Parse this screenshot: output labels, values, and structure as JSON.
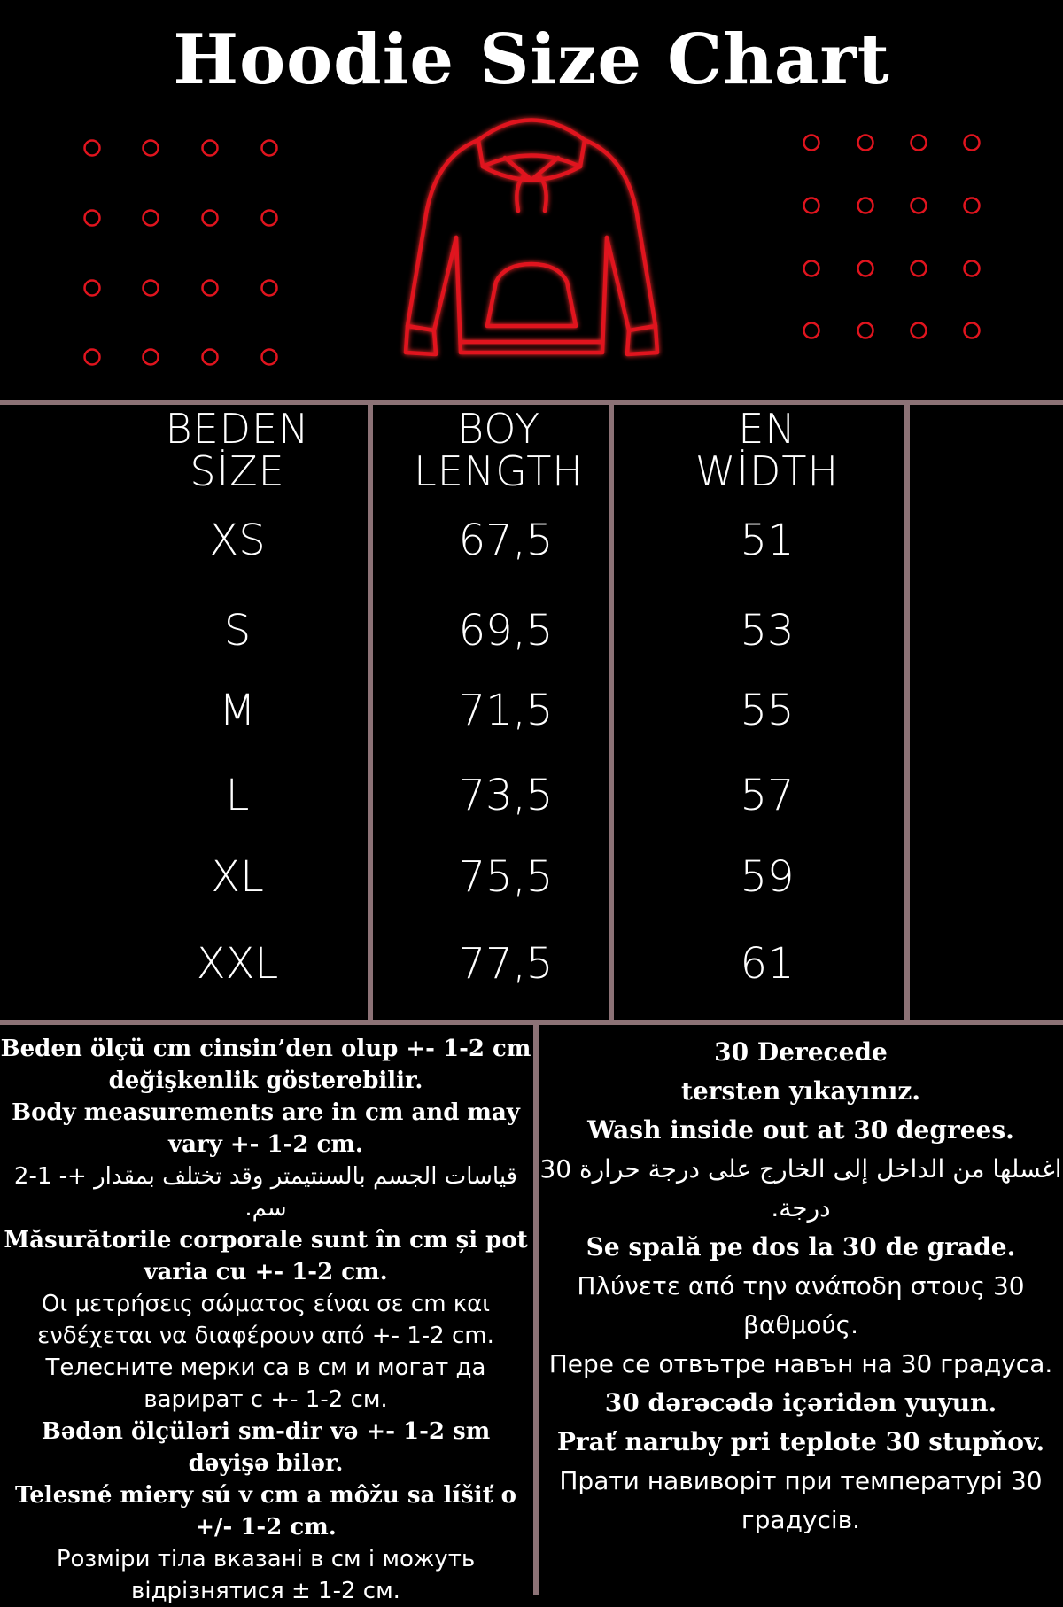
{
  "title": "Hoodie Size Chart",
  "colors": {
    "accent": "#e0141e",
    "divider": "#8c7276",
    "background": "#000000",
    "text": "#ffffff"
  },
  "icons": {
    "hoodie": "hoodie-outline-icon",
    "dots": "decorative-circle-grid"
  },
  "table": {
    "headers": [
      {
        "line1": "BEDEN",
        "line2": "SİZE"
      },
      {
        "line1": "BOY",
        "line2": "LENGTH"
      },
      {
        "line1": "EN",
        "line2": "WİDTH"
      }
    ],
    "rows": [
      {
        "size": "XS",
        "length": "67,5",
        "width": "51"
      },
      {
        "size": "S",
        "length": "69,5",
        "width": "53"
      },
      {
        "size": "M",
        "length": "71,5",
        "width": "55"
      },
      {
        "size": "L",
        "length": "73,5",
        "width": "57"
      },
      {
        "size": "XL",
        "length": "75,5",
        "width": "59"
      },
      {
        "size": "XXL",
        "length": "77,5",
        "width": "61"
      }
    ]
  },
  "notes_left": [
    {
      "text": "Beden ölçü cm cinsin’den olup +- 1-2 cm değişkenlik gösterebilir.",
      "style": "s"
    },
    {
      "text": "Body measurements are in cm and may vary +- 1-2 cm.",
      "style": "s"
    },
    {
      "text": "قياسات الجسم بالسنتيمتر وقد تختلف بمقدار +- 1-2 سم.",
      "style": "n"
    },
    {
      "text": "Măsurătorile corporale sunt în cm și pot varia cu +- 1-2 cm.",
      "style": "s"
    },
    {
      "text": "Οι μετρήσεις σώματος είναι σε cm και ενδέχεται να διαφέρουν από +- 1-2 cm.",
      "style": "n"
    },
    {
      "text": "Телесните мерки са в см и могат да варират с +- 1-2 см.",
      "style": "n"
    },
    {
      "text": "Bədən ölçüləri sm-dir və +- 1-2 sm dəyişə bilər.",
      "style": "s"
    },
    {
      "text": "Telesné miery sú v cm a môžu sa líšiť o +/- 1-2 cm.",
      "style": "s"
    },
    {
      "text": "Розміри тіла вказані в см і можуть відрізнятися ± 1-2 см.",
      "style": "n"
    }
  ],
  "notes_right": [
    {
      "text": "30 Derecede",
      "style": "s"
    },
    {
      "text": "tersten yıkayınız.",
      "style": "s"
    },
    {
      "text": "Wash inside out at 30 degrees.",
      "style": "s"
    },
    {
      "text": "اغسلها من الداخل إلى الخارج على درجة حرارة 30 درجة.",
      "style": "n"
    },
    {
      "text": "Se spală pe dos la 30 de grade.",
      "style": "s"
    },
    {
      "text": "Πλύνετε από την ανάποδη στους 30 βαθμούς.",
      "style": "n"
    },
    {
      "text": "Пере се отвътре навън на 30 градуса.",
      "style": "n"
    },
    {
      "text": "30 dərəcədə içəridən yuyun.",
      "style": "s"
    },
    {
      "text": "Prať naruby pri teplote 30 stupňov.",
      "style": "s"
    },
    {
      "text": "Прати навиворіт при температурі 30 градусів.",
      "style": "n"
    }
  ]
}
